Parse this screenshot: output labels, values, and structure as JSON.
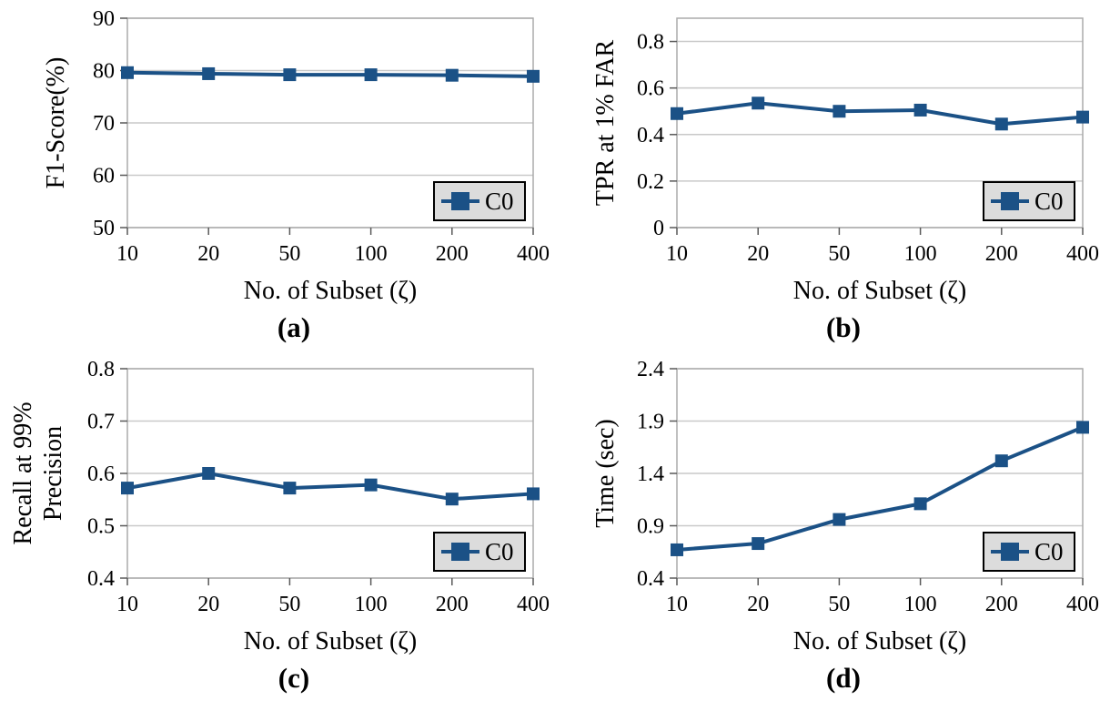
{
  "page": {
    "background": "#FFFFFF"
  },
  "style": {
    "series_color": "#1B5186",
    "grid_color": "#C9C9C9",
    "plot_border_color": "#ABABAB",
    "tick_color": "#595959",
    "legend_bg": "#DCDCDC",
    "legend_border": "#000000",
    "text_color": "#000000"
  },
  "shared": {
    "x_axis_label": "No. of Subset (ζ)",
    "legend_label": "C0",
    "categories": [
      "10",
      "20",
      "50",
      "100",
      "200",
      "400"
    ]
  },
  "chart_data": [
    {
      "panel": "a",
      "type": "line",
      "caption": "(a)",
      "ylabel_lines": [
        "F1-Score(%)"
      ],
      "xlabel": "No. of Subset (ζ)",
      "categories": [
        "10",
        "20",
        "50",
        "100",
        "200",
        "400"
      ],
      "series": [
        {
          "name": "C0",
          "values": [
            79.6,
            79.4,
            79.2,
            79.2,
            79.1,
            78.9
          ]
        }
      ],
      "ylim": [
        50,
        90
      ],
      "ytick_values": [
        50,
        60,
        70,
        80,
        90
      ],
      "ytick_labels": [
        "50",
        "60",
        "70",
        "80",
        "90"
      ],
      "grid": "horizontal",
      "legend_position": "bottom-right"
    },
    {
      "panel": "b",
      "type": "line",
      "caption": "(b)",
      "ylabel_lines": [
        "TPR at 1% FAR"
      ],
      "xlabel": "No. of Subset (ζ)",
      "categories": [
        "10",
        "20",
        "50",
        "100",
        "200",
        "400"
      ],
      "series": [
        {
          "name": "C0",
          "values": [
            0.49,
            0.535,
            0.5,
            0.505,
            0.445,
            0.475
          ]
        }
      ],
      "ylim": [
        0,
        0.9
      ],
      "ytick_values": [
        0,
        0.2,
        0.4,
        0.6,
        0.8
      ],
      "ytick_labels": [
        "0",
        "0.2",
        "0.4",
        "0.6",
        "0.8"
      ],
      "grid": "horizontal",
      "legend_position": "bottom-right"
    },
    {
      "panel": "c",
      "type": "line",
      "caption": "(c)",
      "ylabel_lines": [
        "Recall at 99%",
        "Precision"
      ],
      "xlabel": "No. of Subset (ζ)",
      "categories": [
        "10",
        "20",
        "50",
        "100",
        "200",
        "400"
      ],
      "series": [
        {
          "name": "C0",
          "values": [
            0.572,
            0.6,
            0.572,
            0.578,
            0.551,
            0.561
          ]
        }
      ],
      "ylim": [
        0.4,
        0.8
      ],
      "ytick_values": [
        0.4,
        0.5,
        0.6,
        0.7,
        0.8
      ],
      "ytick_labels": [
        "0.4",
        "0.5",
        "0.6",
        "0.7",
        "0.8"
      ],
      "grid": "horizontal",
      "legend_position": "bottom-right"
    },
    {
      "panel": "d",
      "type": "line",
      "caption": "(d)",
      "ylabel_lines": [
        "Time (sec)"
      ],
      "xlabel": "No. of Subset (ζ)",
      "categories": [
        "10",
        "20",
        "50",
        "100",
        "200",
        "400"
      ],
      "series": [
        {
          "name": "C0",
          "values": [
            0.67,
            0.73,
            0.96,
            1.11,
            1.52,
            1.84
          ]
        }
      ],
      "ylim": [
        0.4,
        2.4
      ],
      "ytick_values": [
        0.4,
        0.9,
        1.4,
        1.9,
        2.4
      ],
      "ytick_labels": [
        "0.4",
        "0.9",
        "1.4",
        "1.9",
        "2.4"
      ],
      "grid": "horizontal",
      "legend_position": "bottom-right"
    }
  ]
}
